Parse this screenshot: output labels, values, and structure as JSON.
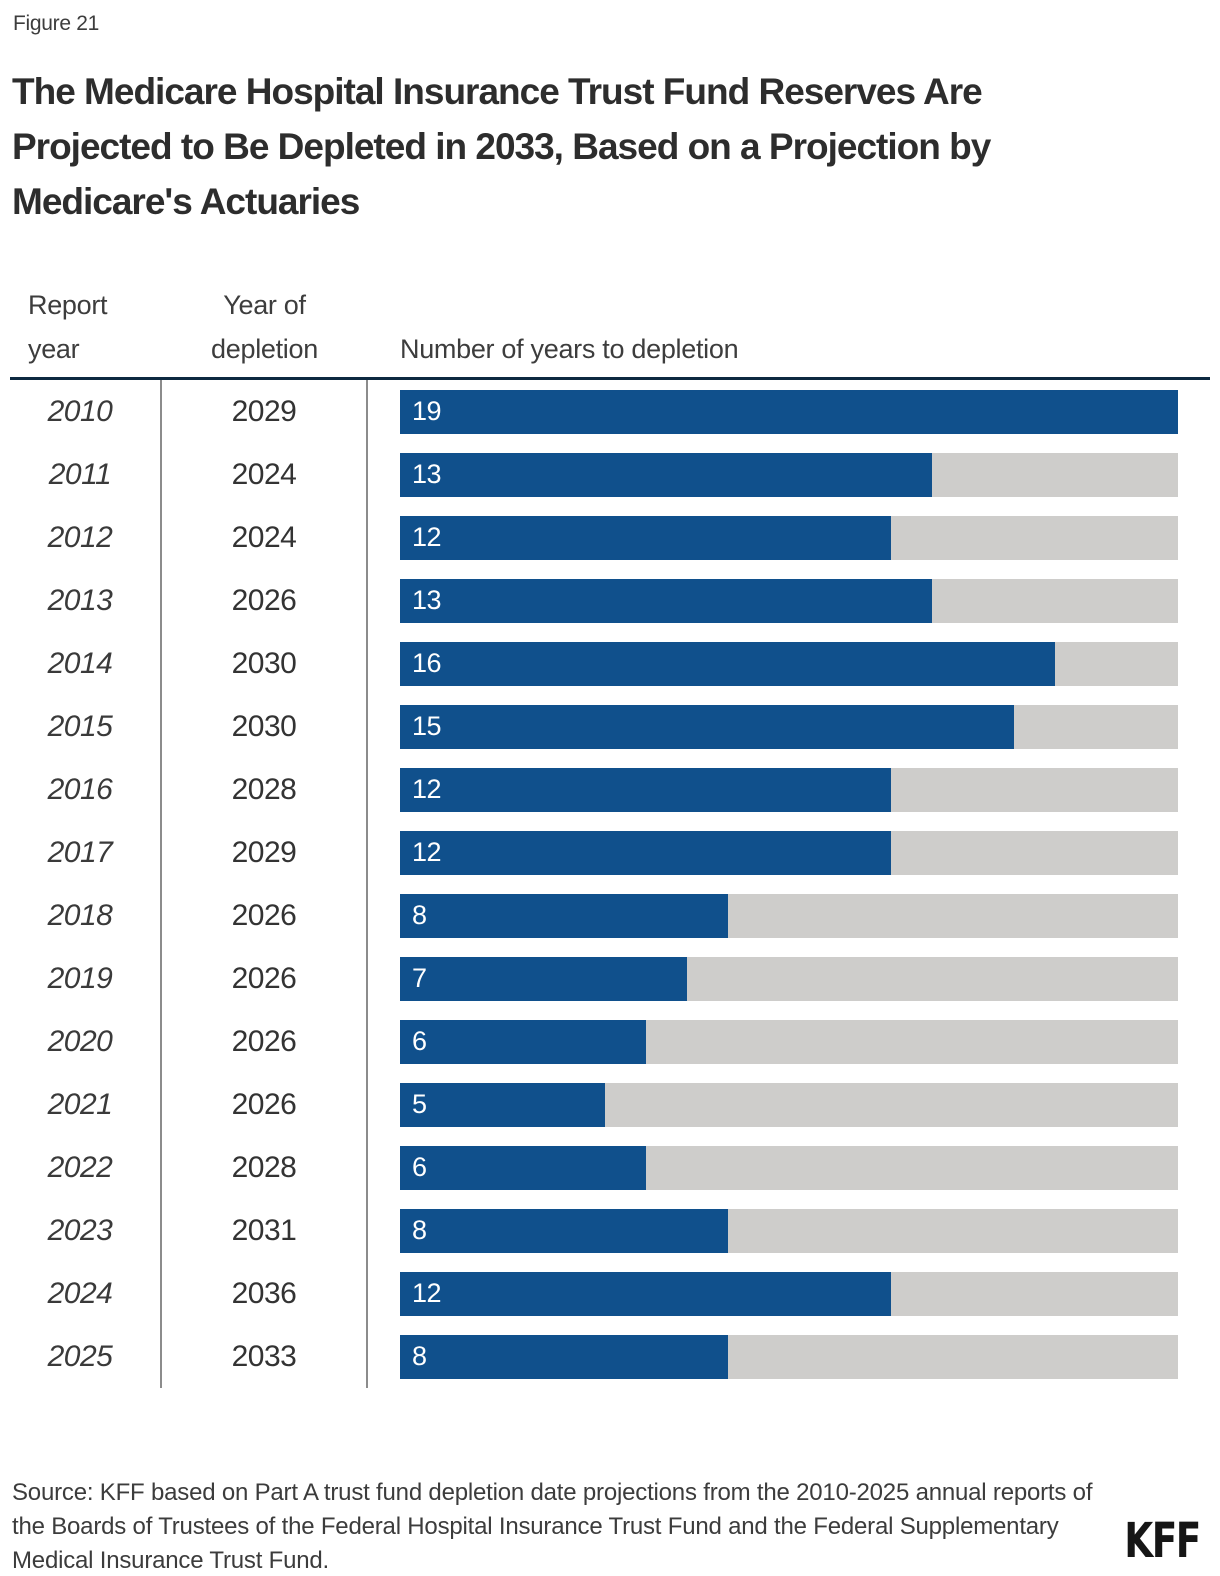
{
  "figure_label": "Figure 21",
  "title": "The Medicare Hospital Insurance Trust Fund Reserves Are Projected to Be Depleted in 2033, Based on a Projection by Medicare's Actuaries",
  "columns": {
    "report_year": "Report year",
    "year_of_depletion": "Year of depletion",
    "bars": "Number of years to depletion"
  },
  "chart_data": {
    "type": "bar",
    "orientation": "horizontal",
    "title": "The Medicare Hospital Insurance Trust Fund Reserves Are Projected to Be Depleted in 2033, Based on a Projection by Medicare's Actuaries",
    "categories": [
      "2010",
      "2011",
      "2012",
      "2013",
      "2014",
      "2015",
      "2016",
      "2017",
      "2018",
      "2019",
      "2020",
      "2021",
      "2022",
      "2023",
      "2024",
      "2025"
    ],
    "series": [
      {
        "name": "Number of years to depletion",
        "values": [
          19,
          13,
          12,
          13,
          16,
          15,
          12,
          12,
          8,
          7,
          6,
          5,
          6,
          8,
          12,
          8
        ]
      },
      {
        "name": "Year of depletion",
        "values": [
          2029,
          2024,
          2024,
          2026,
          2030,
          2030,
          2028,
          2029,
          2026,
          2026,
          2026,
          2026,
          2028,
          2031,
          2036,
          2033
        ]
      }
    ],
    "xlim": [
      0,
      19
    ],
    "grid": false,
    "legend": false,
    "bar_color": "#10508c",
    "track_color": "#cecdcb",
    "value_labels": "inside-left, white"
  },
  "source": {
    "text": "Source: KFF based on Part A trust fund depletion date projections from the 2010-2025 annual reports of the Boards of Trustees of the Federal Hospital Insurance Trust Fund and the Federal Supplementary Medical Insurance Trust Fund."
  },
  "logo": {
    "text": "KFF"
  }
}
